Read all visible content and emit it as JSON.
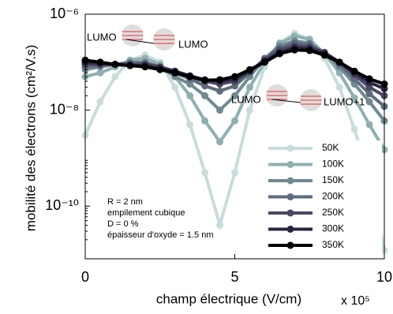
{
  "chart_data": {
    "type": "line",
    "x_label": "champ électrique (V/cm)",
    "x_multiplier": "x 10⁵",
    "y_label": "mobilité des électrons (cm²/V.s)",
    "log_y": true,
    "x": [
      0,
      0.5,
      1,
      1.5,
      2,
      2.5,
      3,
      3.5,
      4,
      4.5,
      5,
      5.5,
      6,
      6.5,
      7,
      7.5,
      8,
      8.5,
      9,
      9.5,
      10
    ],
    "xlim": [
      0,
      10
    ],
    "xticks": [
      0,
      5,
      10
    ],
    "ylim": [
      8e-12,
      1e-06
    ],
    "yticks": [
      {
        "value": 1e-10,
        "label": "10⁻¹⁰"
      },
      {
        "value": 1e-08,
        "label": "10⁻⁸"
      },
      {
        "value": 1e-06,
        "label": "10⁻⁶"
      }
    ],
    "series": [
      {
        "name": "50K",
        "color": "#c8dcdc",
        "values": [
          3e-09,
          1.5e-08,
          5e-08,
          1.1e-07,
          1.4e-07,
          1e-07,
          3e-08,
          5e-09,
          5e-10,
          4e-11,
          5e-10,
          1e-08,
          8e-08,
          2.5e-07,
          4e-07,
          3e-07,
          1.2e-07,
          3e-08,
          4e-09,
          4e-10,
          1.2e-11
        ]
      },
      {
        "name": "100K",
        "color": "#8fb0b0",
        "values": [
          5e-08,
          6e-08,
          8e-08,
          1.1e-07,
          1.2e-07,
          9e-08,
          5e-08,
          2e-08,
          6e-09,
          2.2e-09,
          6e-09,
          3e-08,
          1e-07,
          2.5e-07,
          3.5e-07,
          3e-07,
          1.5e-07,
          6e-08,
          1.8e-08,
          5e-09,
          1.5e-09
        ]
      },
      {
        "name": "150K",
        "color": "#6f8a90",
        "values": [
          7e-08,
          8e-08,
          9e-08,
          1e-07,
          1e-07,
          8e-08,
          5e-08,
          3.5e-08,
          2e-08,
          1e-08,
          2e-08,
          5e-08,
          1.2e-07,
          2.2e-07,
          2.8e-07,
          2.5e-07,
          1.5e-07,
          8e-08,
          3.5e-08,
          1.5e-08,
          6e-09
        ]
      },
      {
        "name": "200K",
        "color": "#5e6b7e",
        "values": [
          8e-08,
          8.5e-08,
          9e-08,
          9.5e-08,
          9.5e-08,
          8e-08,
          6e-08,
          4.5e-08,
          3.2e-08,
          2.5e-08,
          3.2e-08,
          6e-08,
          1.2e-07,
          2e-07,
          2.5e-07,
          2.3e-07,
          1.6e-07,
          9e-08,
          4.5e-08,
          2.2e-08,
          1.2e-08
        ]
      },
      {
        "name": "250K",
        "color": "#4a4866",
        "values": [
          9e-08,
          9e-08,
          9e-08,
          9e-08,
          9e-08,
          8e-08,
          6.5e-08,
          5e-08,
          4e-08,
          3.5e-08,
          4e-08,
          6.5e-08,
          1.1e-07,
          1.8e-07,
          2.2e-07,
          2.1e-07,
          1.6e-07,
          1e-07,
          5.5e-08,
          3e-08,
          2e-08
        ]
      },
      {
        "name": "300K",
        "color": "#2a2540",
        "values": [
          1e-07,
          9.5e-08,
          9e-08,
          8.5e-08,
          8.5e-08,
          7.5e-08,
          6.5e-08,
          5.2e-08,
          4.3e-08,
          4e-08,
          4.5e-08,
          6.5e-08,
          1.05e-07,
          1.6e-07,
          2e-07,
          1.9e-07,
          1.5e-07,
          1e-07,
          6e-08,
          3.8e-08,
          2.8e-08
        ]
      },
      {
        "name": "350K",
        "color": "#000000",
        "values": [
          1.1e-07,
          1e-07,
          9e-08,
          8.5e-08,
          8e-08,
          7e-08,
          6e-08,
          5e-08,
          4.2e-08,
          4.3e-08,
          5e-08,
          7e-08,
          1e-07,
          1.5e-07,
          1.8e-07,
          1.75e-07,
          1.4e-07,
          1e-07,
          6.5e-08,
          4.5e-08,
          3.5e-08
        ]
      }
    ],
    "annotations": [
      "LUMO",
      "LUMO",
      "LUMO",
      "LUMO+1",
      "R = 2 nm",
      "empilement cubique",
      "D = 0 %",
      "épaisseur d'oxyde = 1.5 nm"
    ]
  }
}
